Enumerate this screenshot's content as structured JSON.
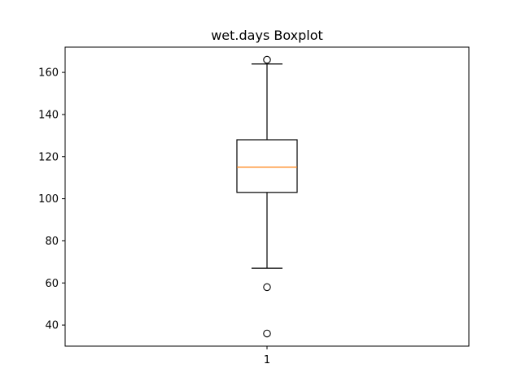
{
  "chart_data": {
    "type": "boxplot",
    "title": "wet.days Boxplot",
    "xlabel": "",
    "ylabel": "",
    "categories": [
      "1"
    ],
    "boxes": [
      {
        "label": "1",
        "whisker_low": 67,
        "q1": 103,
        "median": 115,
        "q3": 128,
        "whisker_high": 164,
        "outliers": [
          166,
          58,
          36
        ]
      }
    ],
    "ylim": [
      30,
      172
    ],
    "yticks": [
      40,
      60,
      80,
      100,
      120,
      140,
      160
    ],
    "xlim": [
      0.5,
      1.5
    ],
    "colors": {
      "box": "#000000",
      "median": "#ff7f0e",
      "axes": "#000000"
    }
  }
}
